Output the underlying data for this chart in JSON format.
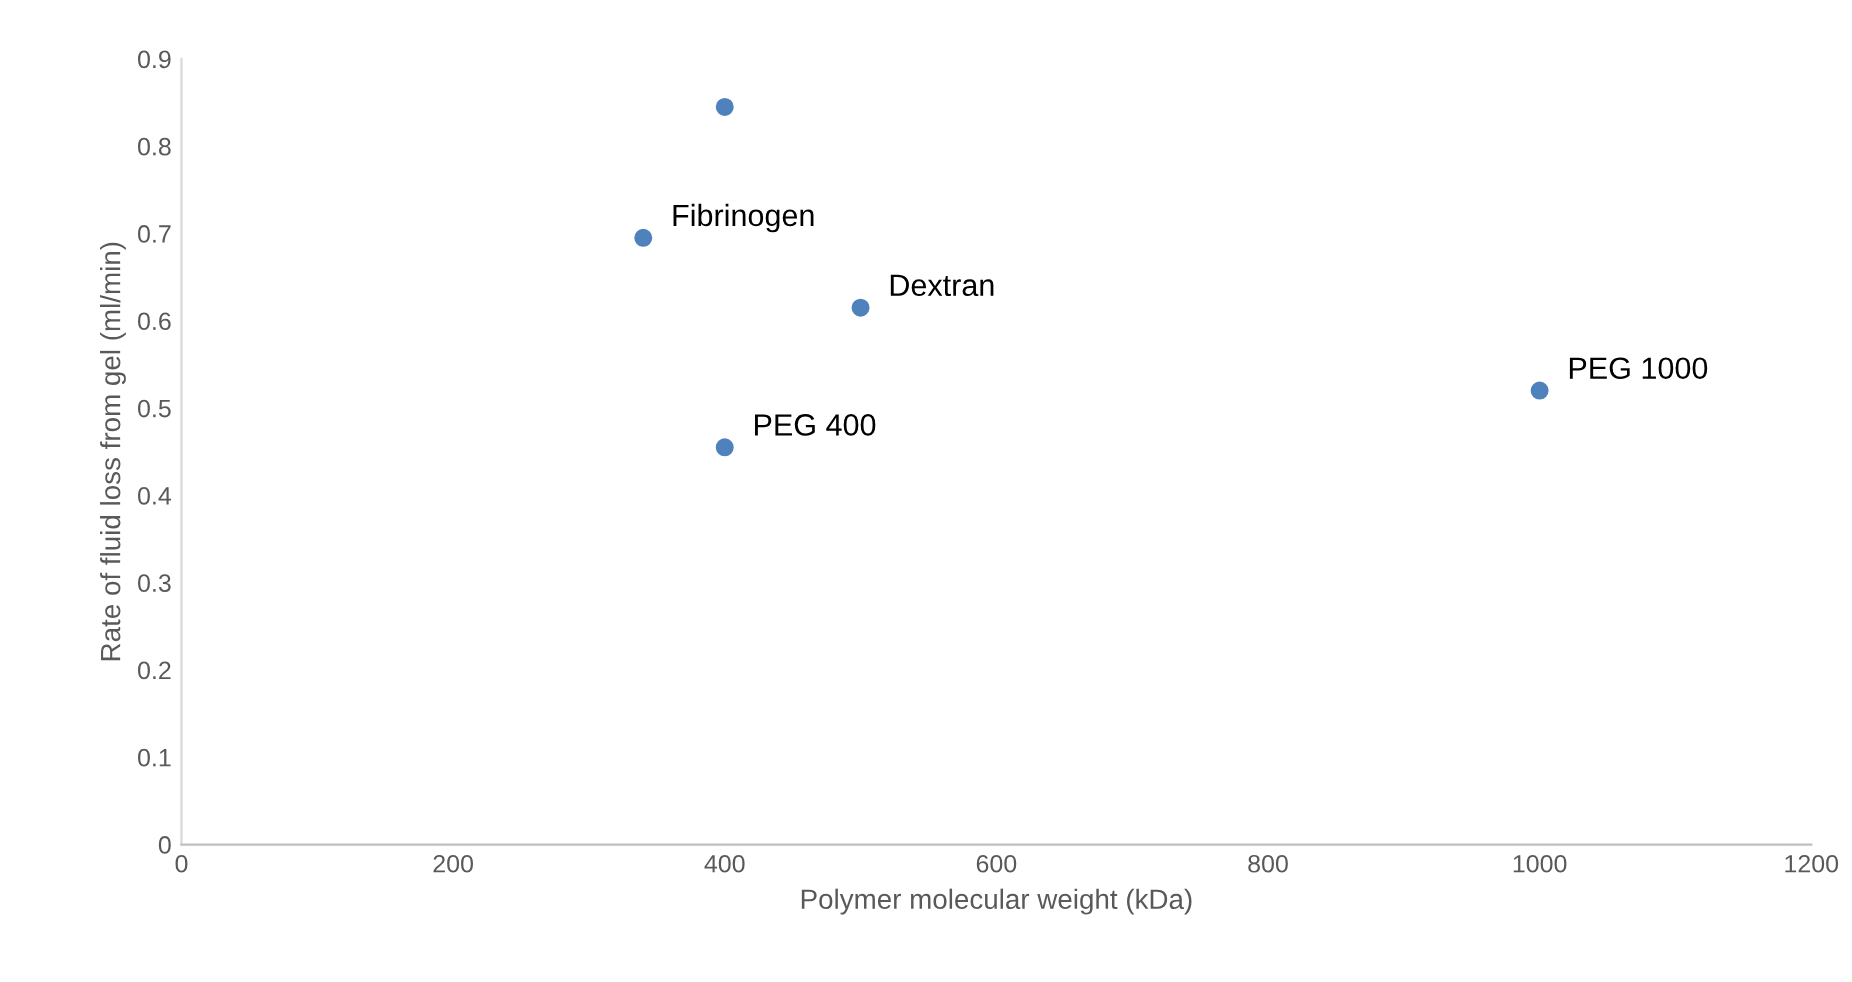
{
  "chart_data": {
    "type": "scatter",
    "xlabel": "Polymer molecular weight (kDa)",
    "ylabel": "Rate of fluid loss from gel (ml/min)",
    "x": [
      400,
      340,
      500,
      400,
      1000
    ],
    "series": [
      {
        "color": "#4f81bd",
        "values": [
          0.845,
          0.695,
          0.615,
          0.455,
          0.52
        ]
      }
    ],
    "annotations": [
      {
        "text": "Fibrinogen",
        "x": 340,
        "y": 0.695
      },
      {
        "text": "Dextran",
        "x": 500,
        "y": 0.615
      },
      {
        "text": "PEG 400",
        "x": 400,
        "y": 0.455
      },
      {
        "text": "PEG 1000",
        "x": 1000,
        "y": 0.52
      }
    ],
    "xlim": [
      0,
      1200
    ],
    "xticks": [
      0,
      200,
      400,
      600,
      800,
      1000,
      1200
    ],
    "ylim": [
      0,
      0.9
    ],
    "yticks": [
      0,
      0.1,
      0.2,
      0.3,
      0.4,
      0.5,
      0.6,
      0.7,
      0.8,
      0.9
    ],
    "marker": "circle",
    "grid": false,
    "legend": false
  }
}
